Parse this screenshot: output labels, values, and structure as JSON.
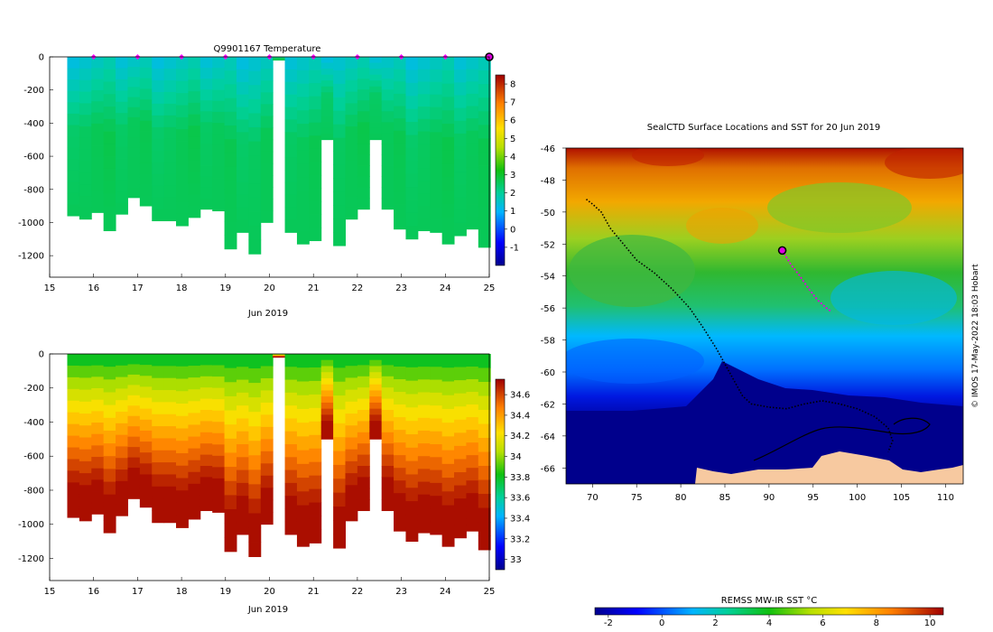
{
  "chart_data": [
    {
      "id": "temperature-section",
      "type": "heatmap",
      "title": "Q9901167  Temperature",
      "xlabel": "Jun 2019",
      "ylabel": "",
      "xlim": [
        15,
        25
      ],
      "ylim": [
        -1330,
        0
      ],
      "x_ticks": [
        "15",
        "16",
        "17",
        "18",
        "19",
        "20",
        "21",
        "22",
        "23",
        "24",
        "25"
      ],
      "y_ticks": [
        "0",
        "-200",
        "-400",
        "-600",
        "-800",
        "-1000",
        "-1200"
      ],
      "colorbar": {
        "min": -2,
        "max": 8.5,
        "ticks": [
          "8",
          "7",
          "6",
          "5",
          "4",
          "3",
          "2",
          "1",
          "0",
          "-1"
        ],
        "tick_values": [
          8,
          7,
          6,
          5,
          4,
          3,
          2,
          1,
          0,
          -1
        ]
      },
      "surface_markers_day": [
        16,
        17,
        18,
        19,
        20,
        21,
        22,
        23,
        24
      ],
      "current_position_day": 25,
      "profile_start_day": 15.4,
      "profile_width_days": 0.2,
      "profile_max_depths": [
        960,
        980,
        940,
        1050,
        950,
        850,
        900,
        990,
        990,
        1020,
        970,
        920,
        930,
        1160,
        1060,
        1190,
        1000,
        20,
        1060,
        1130,
        1110,
        500,
        1140,
        980,
        920,
        500,
        920,
        1040,
        1100,
        1050,
        1060,
        1130,
        1080,
        1040,
        1150
      ],
      "deep_value": 2.6,
      "surface_value": 1.5
    },
    {
      "id": "salinity-section",
      "type": "heatmap",
      "title": "",
      "xlabel": "Jun 2019",
      "xlim": [
        15,
        25
      ],
      "ylim": [
        -1330,
        0
      ],
      "x_ticks": [
        "15",
        "16",
        "17",
        "18",
        "19",
        "20",
        "21",
        "22",
        "23",
        "24",
        "25"
      ],
      "y_ticks": [
        "0",
        "-200",
        "-400",
        "-600",
        "-800",
        "-1000",
        "-1200"
      ],
      "colorbar": {
        "min": 32.9,
        "max": 34.75,
        "ticks": [
          "34.6",
          "34.4",
          "34.2",
          "34",
          "33.8",
          "33.6",
          "33.4",
          "33.2",
          "33"
        ],
        "tick_values": [
          34.6,
          34.4,
          34.2,
          34.0,
          33.8,
          33.6,
          33.4,
          33.2,
          33.0
        ]
      },
      "surface_value": 33.7,
      "deep_value": 34.72
    },
    {
      "id": "sst-map",
      "type": "heatmap",
      "title": "SealCTD Surface Locations and SST for 20 Jun 2019",
      "xlabel": "",
      "ylabel": "",
      "xlim": [
        67,
        112
      ],
      "ylim": [
        -67,
        -46
      ],
      "x_ticks": [
        "70",
        "75",
        "80",
        "85",
        "90",
        "95",
        "100",
        "105",
        "110"
      ],
      "x_tick_values": [
        70,
        75,
        80,
        85,
        90,
        95,
        100,
        105,
        110
      ],
      "y_ticks": [
        "-46",
        "-48",
        "-50",
        "-52",
        "-54",
        "-56",
        "-58",
        "-60",
        "-62",
        "-64",
        "-66"
      ],
      "y_tick_values": [
        -46,
        -48,
        -50,
        -52,
        -54,
        -56,
        -58,
        -60,
        -62,
        -64,
        -66
      ],
      "colorbar": {
        "label": "REMSS MW-IR SST °C",
        "min": -2.5,
        "max": 10.5,
        "ticks": [
          "-2",
          "0",
          "2",
          "4",
          "6",
          "8",
          "10"
        ],
        "tick_values": [
          -2,
          0,
          2,
          4,
          6,
          8,
          10
        ]
      },
      "track_lon": [
        69.3,
        70.0,
        71.0,
        72.0,
        73.5,
        75.0,
        77.0,
        79.0,
        81.0,
        82.5,
        84.0,
        85.0,
        86.0,
        87.0,
        88.0,
        90.0,
        92.0,
        94.0,
        96.0,
        98.0,
        100.0,
        102.0,
        103.5,
        104.0,
        103.5
      ],
      "track_lat": [
        -49.2,
        -49.5,
        -50.0,
        -51.0,
        -52.0,
        -53.0,
        -53.8,
        -54.8,
        -56.0,
        -57.2,
        -58.5,
        -59.5,
        -60.5,
        -61.5,
        -62.0,
        -62.2,
        -62.3,
        -62.0,
        -61.8,
        -62.0,
        -62.3,
        -62.8,
        -63.5,
        -64.3,
        -65.0
      ],
      "recent_track_lon": [
        91.5,
        92.5,
        93.5,
        94.5,
        95.5,
        96.5,
        97.0
      ],
      "recent_track_lat": [
        -52.4,
        -53.3,
        -54.0,
        -54.8,
        -55.5,
        -56.0,
        -56.2
      ],
      "current_position": {
        "lon": 91.5,
        "lat": -52.4
      }
    }
  ],
  "credit": "© IMOS 17-May-2022 18:03 Hobart"
}
